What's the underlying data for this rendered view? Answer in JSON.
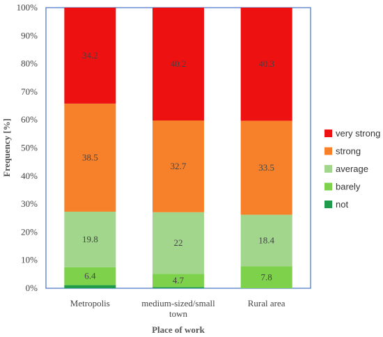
{
  "chart_data": {
    "type": "bar",
    "stacked": true,
    "title": "",
    "xlabel": "Place of work",
    "ylabel": "Frequency [%]",
    "ylim": [
      0,
      100
    ],
    "yticks": [
      "0%",
      "10%",
      "20%",
      "30%",
      "40%",
      "50%",
      "60%",
      "70%",
      "80%",
      "90%",
      "100%"
    ],
    "categories": [
      [
        "Metropolis"
      ],
      [
        "medium-sized/small",
        "town"
      ],
      [
        "Rural area"
      ]
    ],
    "series": [
      {
        "name": "not",
        "color": "#1e9b4b",
        "values": [
          1.1,
          0.4,
          0
        ],
        "labels": [
          "",
          "",
          ""
        ]
      },
      {
        "name": "barely",
        "color": "#7ed14b",
        "values": [
          6.4,
          4.7,
          7.8
        ],
        "labels": [
          "6.4",
          "4.7",
          "7.8"
        ]
      },
      {
        "name": "average",
        "color": "#a1d68c",
        "values": [
          19.8,
          22,
          18.4
        ],
        "labels": [
          "19.8",
          "22",
          "18.4"
        ]
      },
      {
        "name": "strong",
        "color": "#f7812a",
        "values": [
          38.5,
          32.7,
          33.5
        ],
        "labels": [
          "38.5",
          "32.7",
          "33.5"
        ]
      },
      {
        "name": "very strong",
        "color": "#ee1111",
        "values": [
          34.2,
          40.2,
          40.3
        ],
        "labels": [
          "34.2",
          "40.2",
          "40.3"
        ]
      }
    ],
    "legend": {
      "position": "right",
      "order": [
        "very strong",
        "strong",
        "average",
        "barely",
        "not"
      ]
    },
    "grid": false
  }
}
